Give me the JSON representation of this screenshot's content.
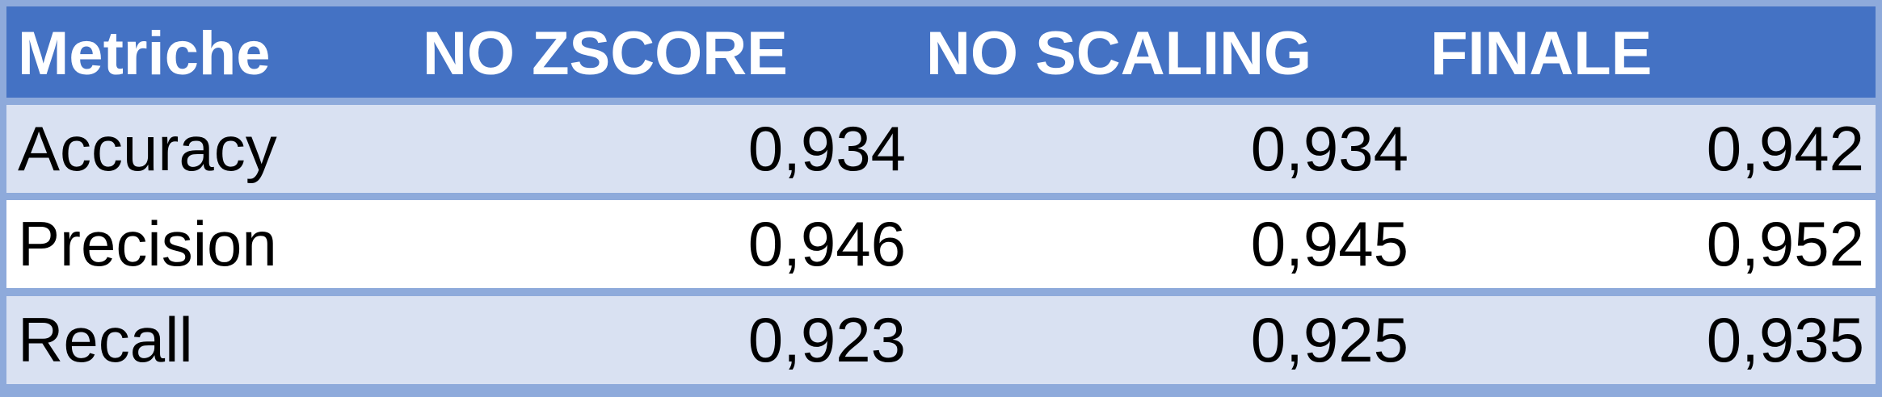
{
  "table": {
    "headers": [
      "Metriche",
      "NO ZSCORE",
      "NO SCALING",
      "FINALE"
    ],
    "rows": [
      {
        "metric": "Accuracy",
        "no_zscore": "0,934",
        "no_scaling": "0,934",
        "finale": "0,942"
      },
      {
        "metric": "Precision",
        "no_zscore": "0,946",
        "no_scaling": "0,945",
        "finale": "0,952"
      },
      {
        "metric": "Recall",
        "no_zscore": "0,923",
        "no_scaling": "0,925",
        "finale": "0,935"
      }
    ]
  },
  "colors": {
    "header_bg": "#4472c4",
    "header_text": "#ffffff",
    "band_bg": "#d9e1f2",
    "plain_bg": "#ffffff",
    "border": "#8eaadb"
  }
}
